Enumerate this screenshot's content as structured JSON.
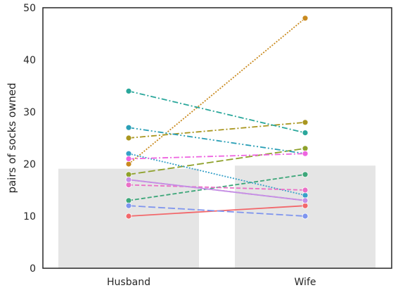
{
  "chart_data": {
    "type": "bar",
    "title": "",
    "xlabel": "",
    "ylabel": "pairs of socks owned",
    "categories": [
      "Husband",
      "Wife"
    ],
    "ylim": [
      0,
      50
    ],
    "yticks": [
      0,
      10,
      20,
      30,
      40,
      50
    ],
    "grid": false,
    "bars": {
      "color": "#e5e5e5",
      "values": [
        19.1,
        19.7
      ]
    },
    "pairs": [
      {
        "values": [
          10,
          12
        ],
        "color": "#f2686b",
        "dash": "solid"
      },
      {
        "values": [
          17,
          13
        ],
        "color": "#e6766e",
        "dash": "dash"
      },
      {
        "values": [
          20,
          48
        ],
        "color": "#c98a1f",
        "dash": "dot"
      },
      {
        "values": [
          25,
          28
        ],
        "color": "#a9961f",
        "dash": "dashdot"
      },
      {
        "values": [
          18,
          23
        ],
        "color": "#8ea12b",
        "dash": "long-dash"
      },
      {
        "values": [
          13,
          18
        ],
        "color": "#3ea77a",
        "dash": "dash"
      },
      {
        "values": [
          34,
          26
        ],
        "color": "#2aa79b",
        "dash": "dashdot"
      },
      {
        "values": [
          27,
          22
        ],
        "color": "#2a9fb6",
        "dash": "dashdotdot"
      },
      {
        "values": [
          22,
          14
        ],
        "color": "#36a0c8",
        "dash": "dot"
      },
      {
        "values": [
          12,
          10
        ],
        "color": "#7f95ee",
        "dash": "long-dash"
      },
      {
        "values": [
          16,
          15
        ],
        "color": "#ea6fc6",
        "dash": "dash"
      },
      {
        "values": [
          21,
          22
        ],
        "color": "#ee64e0",
        "dash": "dashdot"
      },
      {
        "values": [
          17,
          13
        ],
        "color": "#c48fe8",
        "dash": "solid"
      }
    ]
  }
}
